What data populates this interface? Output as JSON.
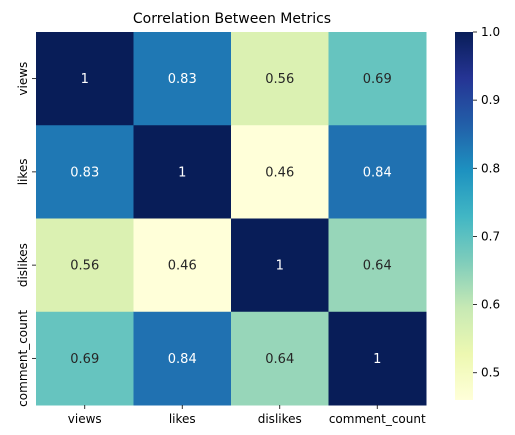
{
  "chart_data": {
    "type": "heatmap",
    "title": "Correlation Between Metrics",
    "x_labels": [
      "views",
      "likes",
      "dislikes",
      "comment_count"
    ],
    "y_labels": [
      "views",
      "likes",
      "dislikes",
      "comment_count"
    ],
    "values": [
      [
        1,
        0.83,
        0.56,
        0.69
      ],
      [
        0.83,
        1,
        0.46,
        0.84
      ],
      [
        0.56,
        0.46,
        1,
        0.64
      ],
      [
        0.69,
        0.84,
        0.64,
        1
      ]
    ],
    "annotations": [
      [
        "1",
        "0.83",
        "0.56",
        "0.69"
      ],
      [
        "0.83",
        "1",
        "0.46",
        "0.84"
      ],
      [
        "0.56",
        "0.46",
        "1",
        "0.64"
      ],
      [
        "0.69",
        "0.84",
        "0.64",
        "1"
      ]
    ],
    "colormap": "YlGnBu",
    "colorbar": {
      "vmin": 0.46,
      "vmax": 1.0,
      "ticks": [
        0.5,
        0.6,
        0.7,
        0.8,
        0.9,
        1.0
      ],
      "tick_labels": [
        "0.5",
        "0.6",
        "0.7",
        "0.8",
        "0.9",
        "1.0"
      ]
    }
  }
}
